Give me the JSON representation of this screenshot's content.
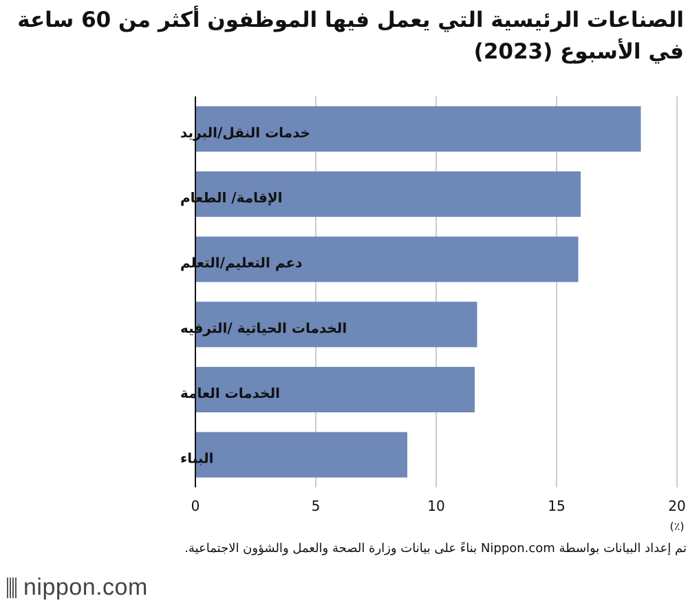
{
  "title": "الصناعات الرئيسية التي يعمل فيها الموظفون أكثر من 60 ساعة في الأسبوع (2023)",
  "source": "تم إعداد البيانات بواسطة Nippon.com بناءً على بيانات وزارة الصحة والعمل والشؤون الاجتماعية.",
  "brand": "nippon.com",
  "colors": {
    "bar": "#6e88b8",
    "grid": "#cccccc",
    "axis": "#111111"
  },
  "chart_data": {
    "type": "bar",
    "orientation": "horizontal",
    "categories": [
      "خدمات النقل/البريد",
      "الإقامة/ الطعام",
      "دعم التعليم/التعلم",
      "الخدمات الحياتية /الترفيه",
      "الخدمات العامة",
      "البناء"
    ],
    "values": [
      18.5,
      16.0,
      15.9,
      11.7,
      11.6,
      8.8
    ],
    "xlim": [
      0,
      20
    ],
    "xticks": [
      "0",
      "5",
      "10",
      "15",
      "20"
    ],
    "xticks_values": [
      0,
      5,
      10,
      15,
      20
    ],
    "unit": "(٪)",
    "grid": true
  }
}
